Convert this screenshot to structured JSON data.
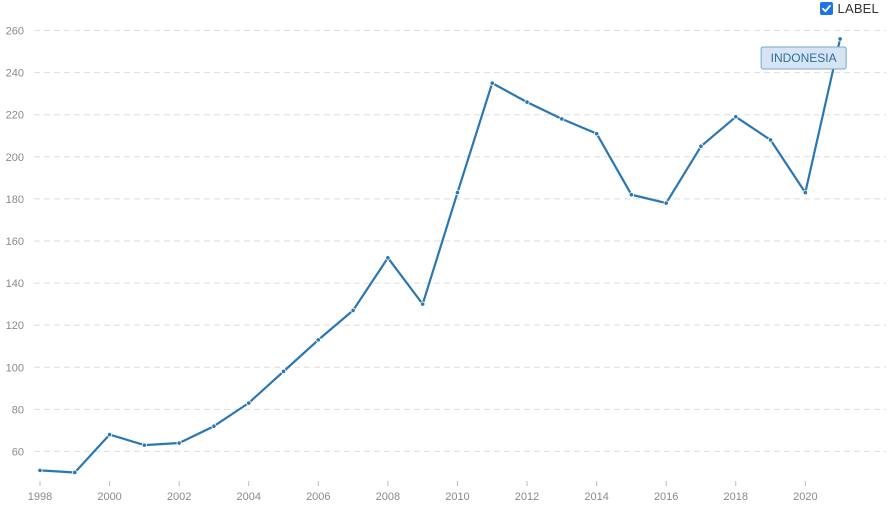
{
  "label_toggle": {
    "checked": true,
    "text": "LABEL"
  },
  "chart_data": {
    "type": "line",
    "title": "",
    "xlabel": "",
    "ylabel": "",
    "xlim": [
      1998,
      2021.6
    ],
    "ylim": [
      45,
      265
    ],
    "y_ticks": [
      60,
      80,
      100,
      120,
      140,
      160,
      180,
      200,
      220,
      240,
      260
    ],
    "x_ticks": [
      1998,
      2000,
      2002,
      2004,
      2006,
      2008,
      2010,
      2012,
      2014,
      2016,
      2018,
      2020
    ],
    "grid": true,
    "line_color": "#2a77b4",
    "series": [
      {
        "name": "INDONESIA",
        "x": [
          1998,
          1999,
          2000,
          2001,
          2002,
          2003,
          2004,
          2005,
          2006,
          2007,
          2008,
          2009,
          2010,
          2011,
          2012,
          2013,
          2014,
          2015,
          2016,
          2017,
          2018,
          2019,
          2020,
          2021
        ],
        "y": [
          51,
          50,
          68,
          63,
          64,
          72,
          83,
          98,
          113,
          127,
          152,
          130,
          183,
          235,
          226,
          218,
          211,
          182,
          178,
          205,
          219,
          208,
          183,
          256
        ]
      }
    ]
  }
}
